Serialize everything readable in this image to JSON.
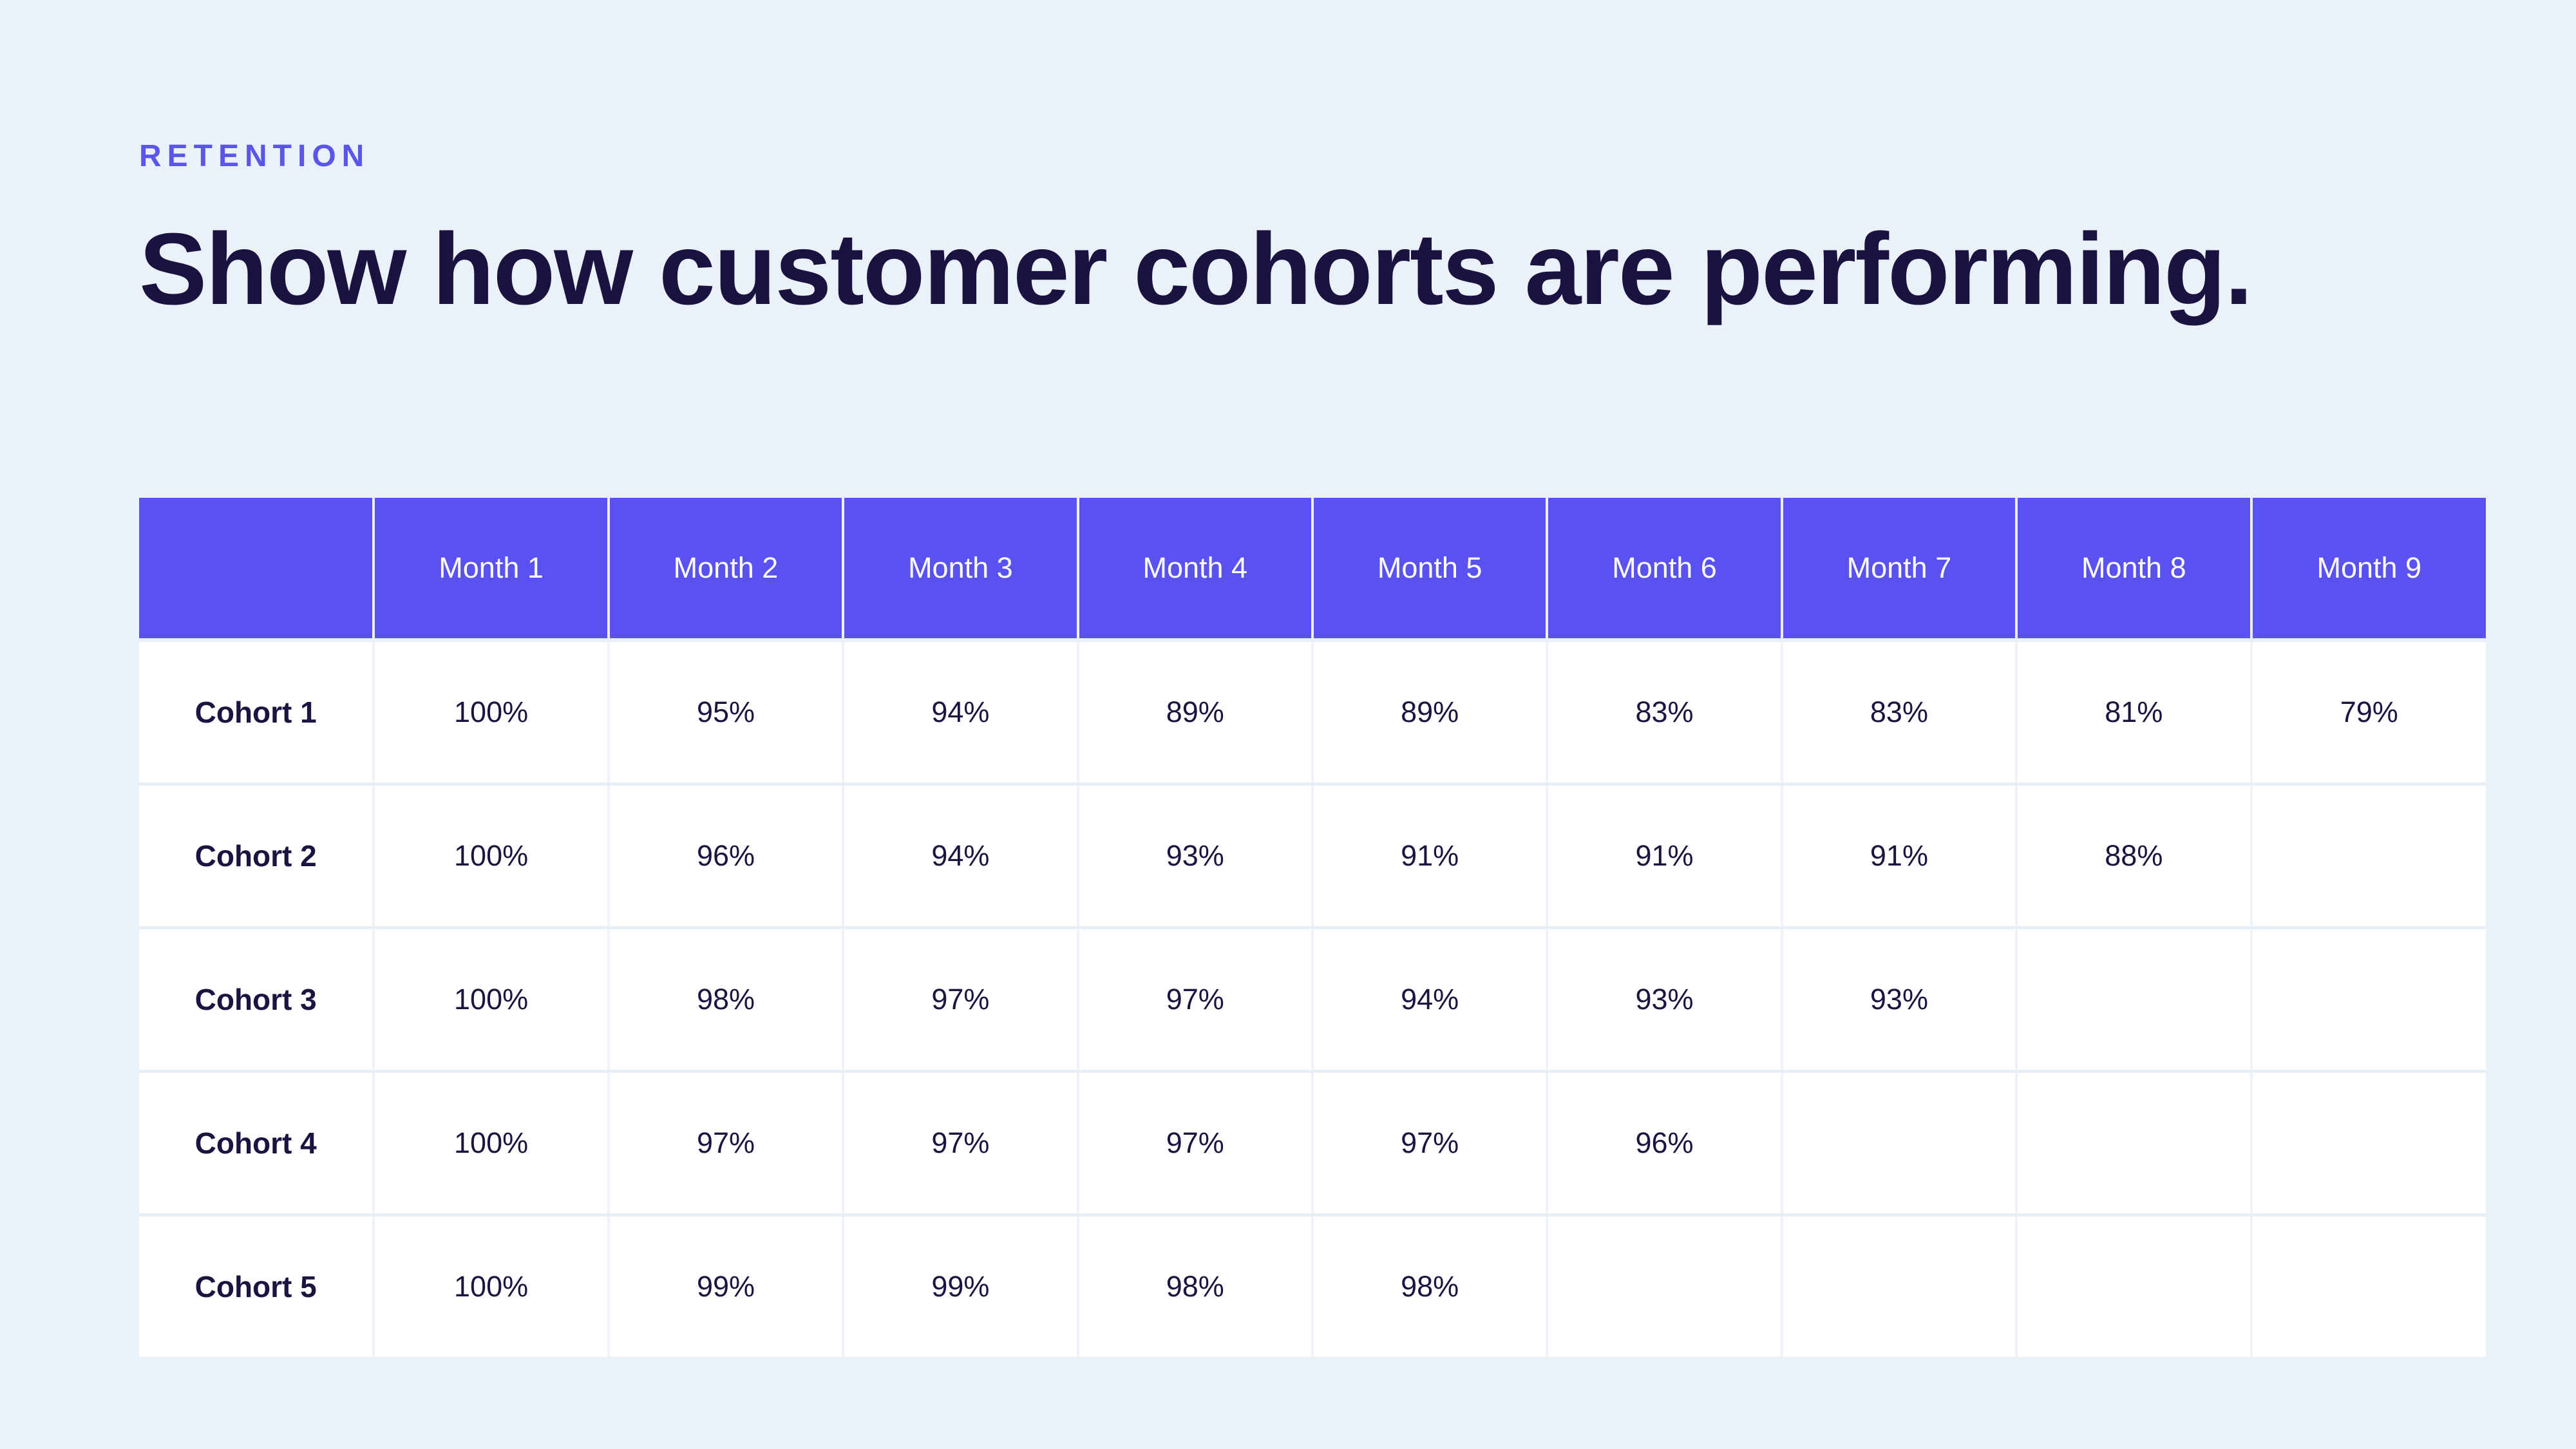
{
  "page": {
    "background_color": "#EBF1F8"
  },
  "header": {
    "eyebrow": "RETENTION",
    "title": "Show how customer cohorts are performing."
  },
  "colors": {
    "accent_purple": "#5952F0",
    "eyebrow_purple": "#5B56EA",
    "heading_navy": "#1A1342",
    "cell_text_navy": "#1B1440",
    "table_header_text": "#FFFFFF",
    "row_background": "#FFFFFF",
    "grid_line": "#E9EFF6"
  },
  "table": {
    "columns": [
      "",
      "Month 1",
      "Month 2",
      "Month 3",
      "Month 4",
      "Month 5",
      "Month 6",
      "Month 7",
      "Month 8",
      "Month 9"
    ],
    "rows": [
      {
        "label": "Cohort 1",
        "values": [
          "100%",
          "95%",
          "94%",
          "89%",
          "89%",
          "83%",
          "83%",
          "81%",
          "79%"
        ]
      },
      {
        "label": "Cohort 2",
        "values": [
          "100%",
          "96%",
          "94%",
          "93%",
          "91%",
          "91%",
          "91%",
          "88%",
          ""
        ]
      },
      {
        "label": "Cohort 3",
        "values": [
          "100%",
          "98%",
          "97%",
          "97%",
          "94%",
          "93%",
          "93%",
          "",
          ""
        ]
      },
      {
        "label": "Cohort 4",
        "values": [
          "100%",
          "97%",
          "97%",
          "97%",
          "97%",
          "96%",
          "",
          "",
          ""
        ]
      },
      {
        "label": "Cohort 5",
        "values": [
          "100%",
          "99%",
          "99%",
          "98%",
          "98%",
          "",
          "",
          "",
          ""
        ]
      }
    ]
  },
  "chart_data": {
    "type": "table",
    "title": "Show how customer cohorts are performing.",
    "subtitle": "RETENTION",
    "categories": [
      "Month 1",
      "Month 2",
      "Month 3",
      "Month 4",
      "Month 5",
      "Month 6",
      "Month 7",
      "Month 8",
      "Month 9"
    ],
    "series": [
      {
        "name": "Cohort 1",
        "values": [
          100,
          95,
          94,
          89,
          89,
          83,
          83,
          81,
          79
        ]
      },
      {
        "name": "Cohort 2",
        "values": [
          100,
          96,
          94,
          93,
          91,
          91,
          91,
          88,
          null
        ]
      },
      {
        "name": "Cohort 3",
        "values": [
          100,
          98,
          97,
          97,
          94,
          93,
          93,
          null,
          null
        ]
      },
      {
        "name": "Cohort 4",
        "values": [
          100,
          97,
          97,
          97,
          97,
          96,
          null,
          null,
          null
        ]
      },
      {
        "name": "Cohort 5",
        "values": [
          100,
          99,
          99,
          98,
          98,
          null,
          null,
          null,
          null
        ]
      }
    ],
    "unit": "%",
    "value_range": [
      0,
      100
    ],
    "legend_position": "none",
    "grid": true
  }
}
